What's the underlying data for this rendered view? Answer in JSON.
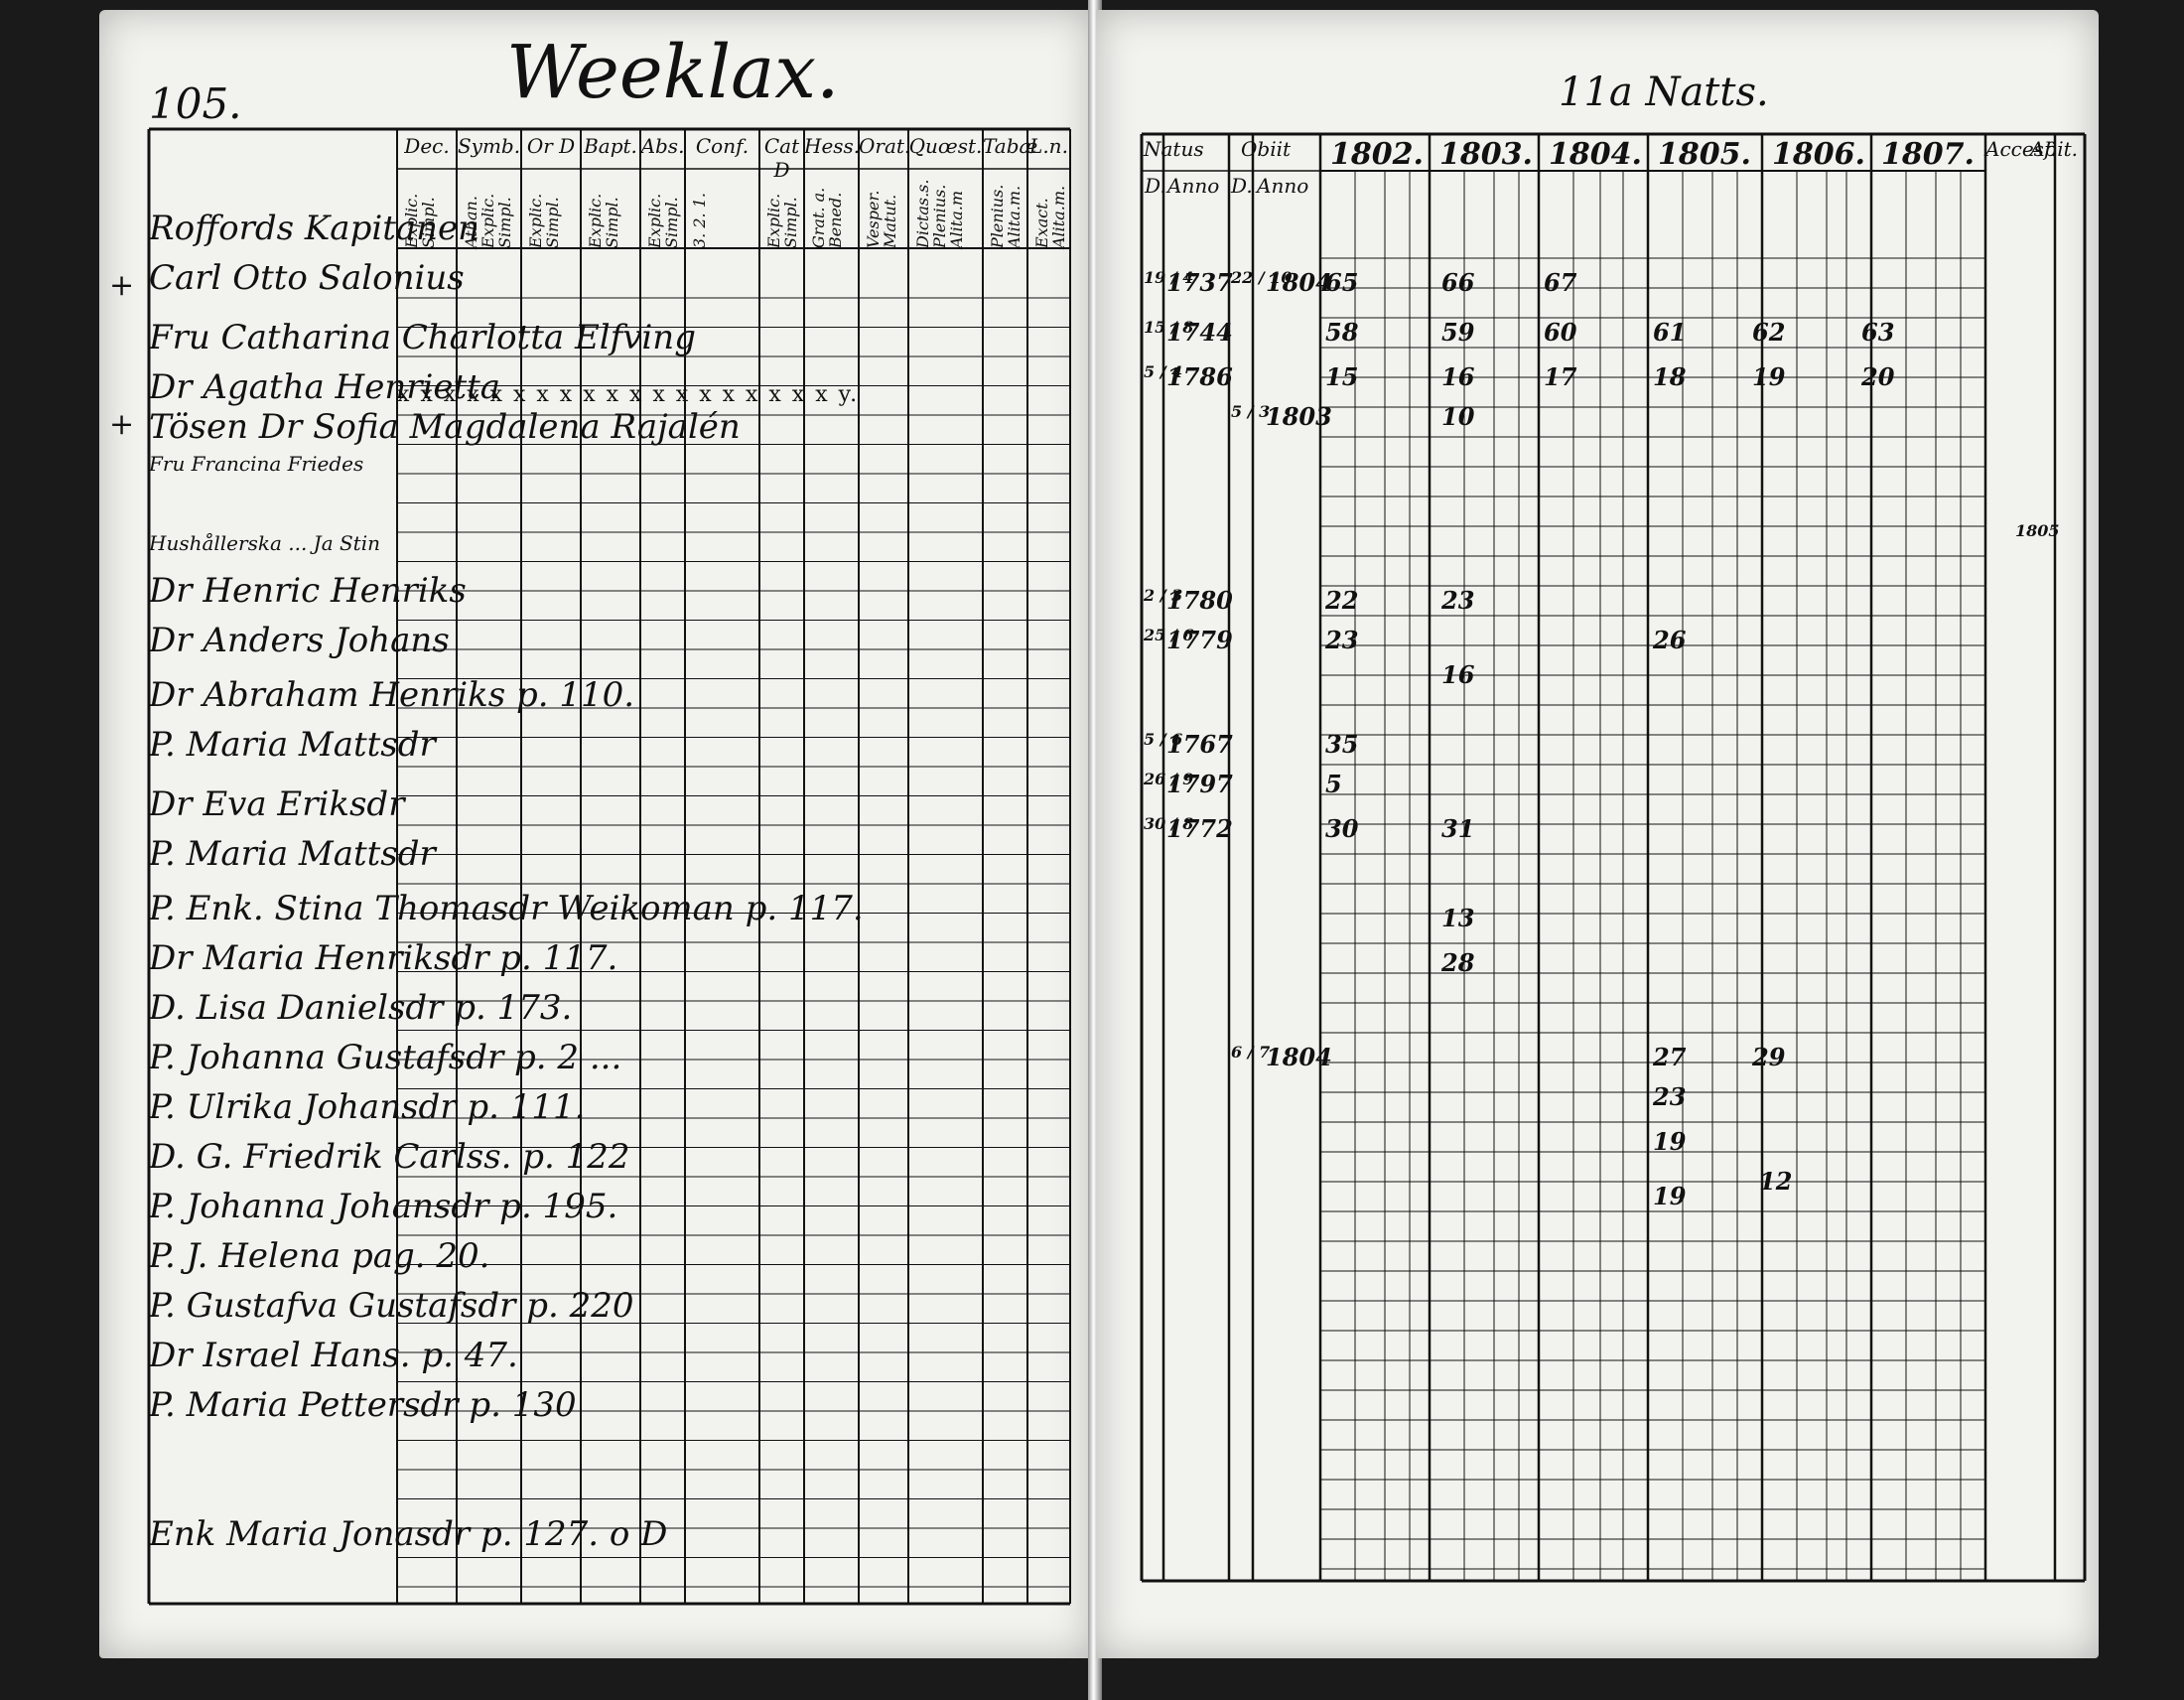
{
  "left_page": {
    "page_number": "105.",
    "place": "Weeklax.",
    "column_headers": [
      "Dec.",
      "Symb.",
      "Or D",
      "Bapt.",
      "Abs.",
      "Conf.",
      "Cat D",
      "Hess.",
      "Orat.",
      "Quœst.",
      "Tabæ",
      "L.n."
    ],
    "column_subheaders": [
      "Explic. Simpl.",
      "Athan. Explic. Simpl.",
      "Explic. Simpl.",
      "Explic. Simpl.",
      "Explic. Simpl.",
      "3. 2. 1.",
      "Explic. Simpl.",
      "Grat. a. Bened.",
      "Vesper. Matut.",
      "Dictas.s. Plenius. Alita.m",
      "Plenius. Alita.m.",
      "Exact. Alita.m."
    ],
    "rows": [
      {
        "name": "Roffords Kapitanen",
        "ref": ""
      },
      {
        "name": "Carl Otto Salonius",
        "ref": ""
      },
      {
        "name": "Fru Catharina Charlotta Elfving",
        "ref": ""
      },
      {
        "name": "Dr Agatha Henrietta",
        "ref": ""
      },
      {
        "name": "Tösen Dr Sofia Magdalena Rajalén",
        "ref": ""
      },
      {
        "name": "Fru Francina Friedes",
        "ref": ""
      },
      {
        "name": "Hushållerska ... Ja Stin",
        "ref": ""
      },
      {
        "name": "Dr Henric Henriks",
        "ref": ""
      },
      {
        "name": "Dr Anders Johans",
        "ref": ""
      },
      {
        "name": "Dr Abraham Henriks",
        "ref": "p. 110."
      },
      {
        "name": "P. Maria Mattsdr",
        "ref": ""
      },
      {
        "name": "Dr Eva Eriksdr",
        "ref": ""
      },
      {
        "name": "P. Maria Mattsdr",
        "ref": ""
      },
      {
        "name": "P. Enk. Stina Thomasdr",
        "ref": "Weikoman p. 117."
      },
      {
        "name": "Dr Maria Henriksdr",
        "ref": "p. 117."
      },
      {
        "name": "D. Lisa Danielsdr",
        "ref": "p. 173."
      },
      {
        "name": "P. Johanna Gustafsdr",
        "ref": "p. 2 ..."
      },
      {
        "name": "P. Ulrika Johansdr",
        "ref": "p. 111."
      },
      {
        "name": "D. G. Friedrik Carlss.",
        "ref": "p. 122"
      },
      {
        "name": "P. Johanna Johansdr",
        "ref": "p. 195."
      },
      {
        "name": "P. J. Helena",
        "ref": "pag. 20."
      },
      {
        "name": "P. Gustafva Gustafsdr",
        "ref": "p. 220"
      },
      {
        "name": "Dr Israel Hans.",
        "ref": "p. 47."
      },
      {
        "name": "P. Maria Pettersdr",
        "ref": "p. 130"
      },
      {
        "name": "Enk Maria Jonasdr",
        "ref": "p. 127. o D"
      }
    ],
    "cross_marks": [
      "+",
      "+"
    ]
  },
  "right_page": {
    "title": "11a Natts.",
    "headers": [
      "Natus",
      "Obiit",
      "1802.",
      "1803.",
      "1804.",
      "1805.",
      "1806.",
      "1807.",
      "Accesf.",
      "Abit."
    ],
    "subheaders": [
      "D.",
      "Anno",
      "D.",
      "Anno"
    ],
    "entries": [
      {
        "nat_d": "19 / 4",
        "nat_anno": "1737",
        "ob_d": "22 / 10",
        "ob_anno": "1804",
        "y1802": "65",
        "y1803": "66",
        "y1804": "67",
        "y1805": "",
        "y1806": "",
        "y1807": ""
      },
      {
        "nat_d": "15 / 8",
        "nat_anno": "1744",
        "ob_d": "",
        "ob_anno": "",
        "y1802": "58",
        "y1803": "59",
        "y1804": "60",
        "y1805": "61",
        "y1806": "62",
        "y1807": "63"
      },
      {
        "nat_d": "5 / 4",
        "nat_anno": "1786",
        "ob_d": "",
        "ob_anno": "",
        "y1802": "15",
        "y1803": "16",
        "y1804": "17",
        "y1805": "18",
        "y1806": "19",
        "y1807": "20"
      },
      {
        "nat_d": "",
        "nat_anno": "",
        "ob_d": "5 / 3",
        "ob_anno": "1803",
        "y1802": "",
        "y1803": "10",
        "y1804": "",
        "y1805": "",
        "y1806": "",
        "y1807": ""
      },
      {
        "nat_d": "2 / 3",
        "nat_anno": "1780",
        "ob_d": "",
        "ob_anno": "",
        "y1802": "22",
        "y1803": "23",
        "y1804": "",
        "y1805": "",
        "y1806": "",
        "y1807": ""
      },
      {
        "nat_d": "25 / 6",
        "nat_anno": "1779",
        "ob_d": "",
        "ob_anno": "",
        "y1802": "23",
        "y1803": "",
        "y1804": "",
        "y1805": "26",
        "y1806": "",
        "y1807": ""
      },
      {
        "nat_d": "",
        "nat_anno": "",
        "ob_d": "",
        "ob_anno": "",
        "y1802": "",
        "y1803": "16",
        "y1804": "",
        "y1805": "",
        "y1806": "",
        "y1807": ""
      },
      {
        "nat_d": "5 / 6",
        "nat_anno": "1767",
        "ob_d": "",
        "ob_anno": "",
        "y1802": "35",
        "y1803": "",
        "y1804": "",
        "y1805": "",
        "y1806": "",
        "y1807": ""
      },
      {
        "nat_d": "26 / 9",
        "nat_anno": "1797",
        "ob_d": "",
        "ob_anno": "",
        "y1802": "5",
        "y1803": "",
        "y1804": "",
        "y1805": "",
        "y1806": "",
        "y1807": ""
      },
      {
        "nat_d": "30 / 8",
        "nat_anno": "1772",
        "ob_d": "",
        "ob_anno": "",
        "y1802": "30",
        "y1803": "31",
        "y1804": "",
        "y1805": "",
        "y1806": "",
        "y1807": ""
      },
      {
        "nat_d": "",
        "nat_anno": "",
        "ob_d": "6 / 7",
        "ob_anno": "1804",
        "y1802": "",
        "y1803": "",
        "y1804": "",
        "y1805": "27",
        "y1806": "29",
        "y1807": ""
      }
    ],
    "extra_marks": [
      "23",
      "19",
      "12",
      "19",
      "13",
      "28",
      "1805"
    ]
  },
  "colors": {
    "paper": "#f2f2ef",
    "ink": "#111111",
    "background": "#1a1a1a"
  }
}
